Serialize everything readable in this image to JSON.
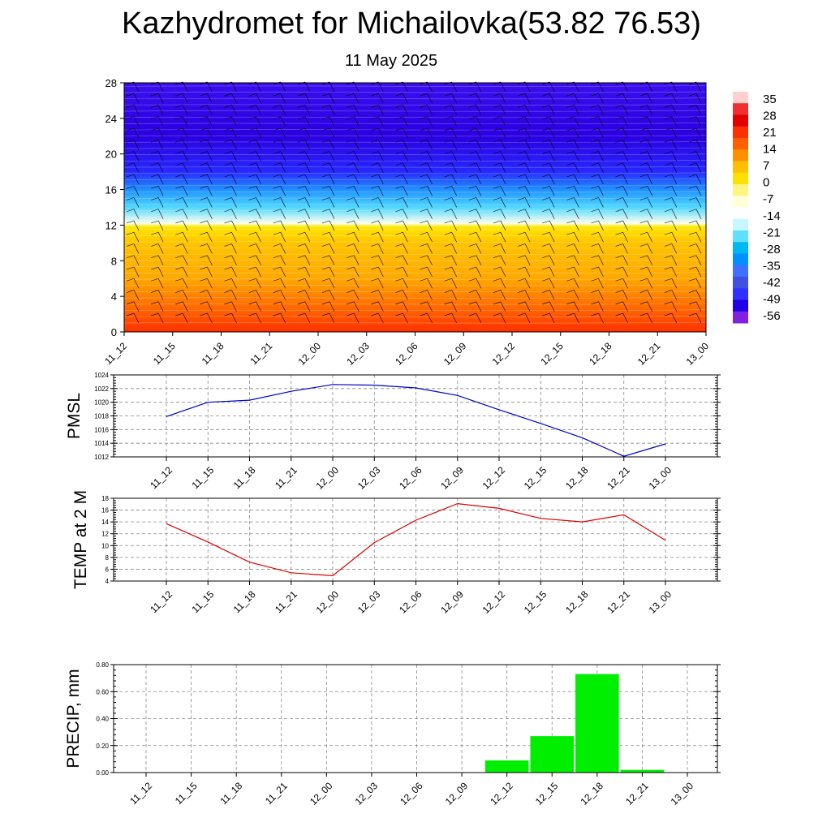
{
  "header": {
    "title": "Kazhydromet for Michailovka(53.82 76.53)",
    "subtitle": "11 May 2025"
  },
  "colors": {
    "pmsl_line": "#0000cc",
    "temp_line": "#dd0000",
    "precip_bar": "#00ee00",
    "grid": "#888888"
  },
  "chart_data": [
    {
      "id": "cross_section",
      "type": "heatmap",
      "title": "",
      "xlabel": "",
      "ylabel": "",
      "x": [
        "11_12",
        "11_15",
        "11_18",
        "11_21",
        "12_00",
        "12_03",
        "12_06",
        "12_09",
        "12_12",
        "12_15",
        "12_18",
        "12_21",
        "13_00"
      ],
      "y_ticks": [
        0,
        4,
        8,
        12,
        16,
        20,
        24,
        28
      ],
      "ylim": [
        0,
        28
      ],
      "vertical_profile": [
        {
          "level": 0,
          "value": 14
        },
        {
          "level": 2,
          "value": 10
        },
        {
          "level": 6,
          "value": 4
        },
        {
          "level": 10,
          "value": 0
        },
        {
          "level": 11.8,
          "value": -7
        },
        {
          "level": 12.2,
          "value": -14
        },
        {
          "level": 14,
          "value": -24
        },
        {
          "level": 16,
          "value": -35
        },
        {
          "level": 18,
          "value": -52
        },
        {
          "level": 22,
          "value": -60
        },
        {
          "level": 28,
          "value": -56
        }
      ],
      "overlay": "wind barbs",
      "colorbar": {
        "labels": [
          "35",
          "28",
          "21",
          "14",
          "7",
          "0",
          "-7",
          "-14",
          "-21",
          "-28",
          "-35",
          "-42",
          "-49",
          "-56"
        ],
        "colors": [
          "#ffd0d0",
          "#f03030",
          "#e00000",
          "#ff3000",
          "#ff6000",
          "#ff9000",
          "#ffc000",
          "#ffe000",
          "#fff580",
          "#ffffd8",
          "#ffffff",
          "#c8f8ff",
          "#60e0ff",
          "#00b8f0",
          "#0090ff",
          "#4070ff",
          "#4050e0",
          "#3030ff",
          "#2000e8",
          "#8020e0"
        ]
      }
    },
    {
      "id": "pmsl",
      "type": "line",
      "ylabel": "PMSL",
      "x": [
        "11_12",
        "11_15",
        "11_18",
        "11_21",
        "12_00",
        "12_03",
        "12_06",
        "12_09",
        "12_12",
        "12_15",
        "12_18",
        "12_21",
        "13_00"
      ],
      "series": [
        {
          "values": [
            1017.9,
            1020.0,
            1020.3,
            1021.6,
            1022.6,
            1022.5,
            1022.1,
            1021.0,
            1018.9,
            1016.9,
            1014.8,
            1012.1,
            1013.9
          ]
        }
      ],
      "ylim": [
        1012,
        1024
      ],
      "y_ticks": [
        "1012",
        "1014",
        "1016",
        "1018",
        "1020",
        "1022",
        "1024"
      ],
      "grid": true
    },
    {
      "id": "temp",
      "type": "line",
      "ylabel": "TEMP at 2 M",
      "x": [
        "11_12",
        "11_15",
        "11_18",
        "11_21",
        "12_00",
        "12_03",
        "12_06",
        "12_09",
        "12_12",
        "12_15",
        "12_18",
        "12_21",
        "13_00"
      ],
      "series": [
        {
          "values": [
            13.7,
            10.6,
            7.2,
            5.4,
            4.9,
            10.5,
            14.3,
            17.1,
            16.3,
            14.6,
            14.0,
            15.2,
            10.9
          ]
        }
      ],
      "ylim": [
        4,
        18
      ],
      "y_ticks": [
        "4",
        "6",
        "8",
        "10",
        "12",
        "14",
        "16",
        "18"
      ],
      "grid": true
    },
    {
      "id": "precip",
      "type": "bar",
      "ylabel": "PRECIP, mm",
      "x": [
        "11_12",
        "11_15",
        "11_18",
        "11_21",
        "12_00",
        "12_03",
        "12_06",
        "12_09",
        "12_12",
        "12_15",
        "12_18",
        "12_21",
        "13_00"
      ],
      "values": [
        0,
        0,
        0,
        0,
        0,
        0,
        0,
        0,
        0.09,
        0.27,
        0.73,
        0.02,
        0
      ],
      "ylim": [
        0,
        0.8
      ],
      "y_ticks": [
        "0.00",
        "0.20",
        "0.40",
        "0.60",
        "0.80"
      ],
      "grid": true
    }
  ]
}
